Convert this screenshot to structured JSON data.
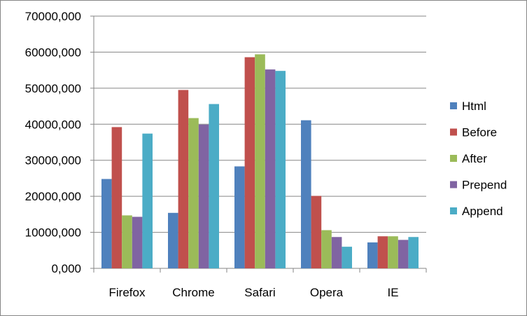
{
  "chart_data": {
    "type": "bar",
    "categories": [
      "Firefox",
      "Chrome",
      "Safari",
      "Opera",
      "IE"
    ],
    "series": [
      {
        "name": "Html",
        "color": "#4F81BD",
        "values": [
          24800,
          15400,
          28300,
          41100,
          7200
        ]
      },
      {
        "name": "Before",
        "color": "#C0504D",
        "values": [
          39200,
          49500,
          58600,
          20100,
          8900
        ]
      },
      {
        "name": "After",
        "color": "#9BBB59",
        "values": [
          14700,
          41700,
          59400,
          10600,
          8900
        ]
      },
      {
        "name": "Prepend",
        "color": "#8064A2",
        "values": [
          14300,
          39900,
          55200,
          8700,
          7900
        ]
      },
      {
        "name": "Append",
        "color": "#4BACC6",
        "values": [
          37400,
          45600,
          54800,
          6000,
          8700
        ]
      }
    ],
    "ylim": [
      0,
      70000
    ],
    "yticks": [
      0,
      10000,
      20000,
      30000,
      40000,
      50000,
      60000,
      70000
    ],
    "ytick_labels": [
      "0,000",
      "10000,000",
      "20000,000",
      "30000,000",
      "40000,000",
      "50000,000",
      "60000,000",
      "70000,000"
    ],
    "grid": true,
    "legend_position": "right"
  }
}
